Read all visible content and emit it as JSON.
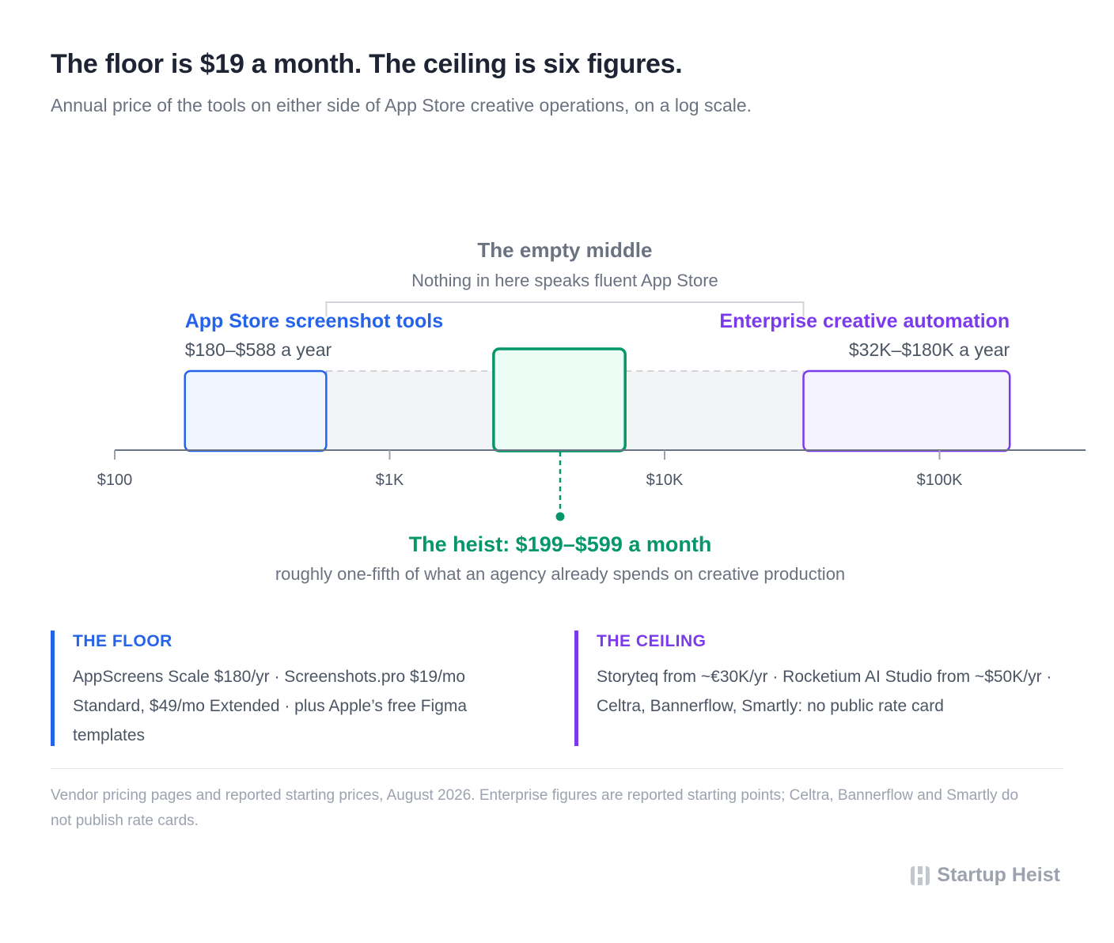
{
  "title": "The floor is $19 a month. The ceiling is six figures.",
  "subtitle": "Annual price of the tools on either side of App Store creative operations, on a log scale.",
  "chart_data": {
    "type": "range",
    "scale": "log",
    "xlim": [
      100,
      340000
    ],
    "ticks": [
      {
        "value": 100,
        "label": "$100"
      },
      {
        "value": 1000,
        "label": "$1K"
      },
      {
        "value": 10000,
        "label": "$10K"
      },
      {
        "value": 100000,
        "label": "$100K"
      }
    ],
    "ranges": [
      {
        "id": "floor",
        "label": "App Store screenshot tools",
        "sublabel": "$180–$588 a year",
        "min": 180,
        "max": 588,
        "color": "#2563eb",
        "fill": "#eff6ff",
        "label_align": "left"
      },
      {
        "id": "ceiling",
        "label": "Enterprise creative automation",
        "sublabel": "$32K–$180K a year",
        "min": 32000,
        "max": 180000,
        "color": "#7c3aed",
        "fill": "#f5f3ff",
        "label_align": "right"
      },
      {
        "id": "heist",
        "label": "The heist: $199–$599 a month",
        "sublabel": "roughly one-fifth of what an agency already spends on creative production",
        "min": 2388,
        "max": 7188,
        "color": "#059669",
        "fill": "#ecfdf5"
      }
    ],
    "gap": {
      "label": "The empty middle",
      "sublabel": "Nothing in here speaks fluent App Store",
      "min": 588,
      "max": 32000,
      "color": "#d1d5db",
      "fill": "#f3f4f6"
    }
  },
  "notes": {
    "floor": {
      "heading": "THE FLOOR",
      "body": "AppScreens Scale $180/yr · Screenshots.pro $19/mo Standard, $49/mo Extended · plus Apple’s free Figma templates"
    },
    "ceiling": {
      "heading": "THE CEILING",
      "body": "Storyteq from ~€30K/yr · Rocketium AI Studio from ~$50K/yr · Celtra, Bannerflow, Smartly: no public rate card"
    }
  },
  "source": "Vendor pricing pages and reported starting prices, August 2026. Enterprise figures are reported starting points; Celtra, Bannerflow and Smartly do not publish rate cards.",
  "brand": {
    "name": "Startup Heist",
    "icon": "heist-logo-icon"
  }
}
